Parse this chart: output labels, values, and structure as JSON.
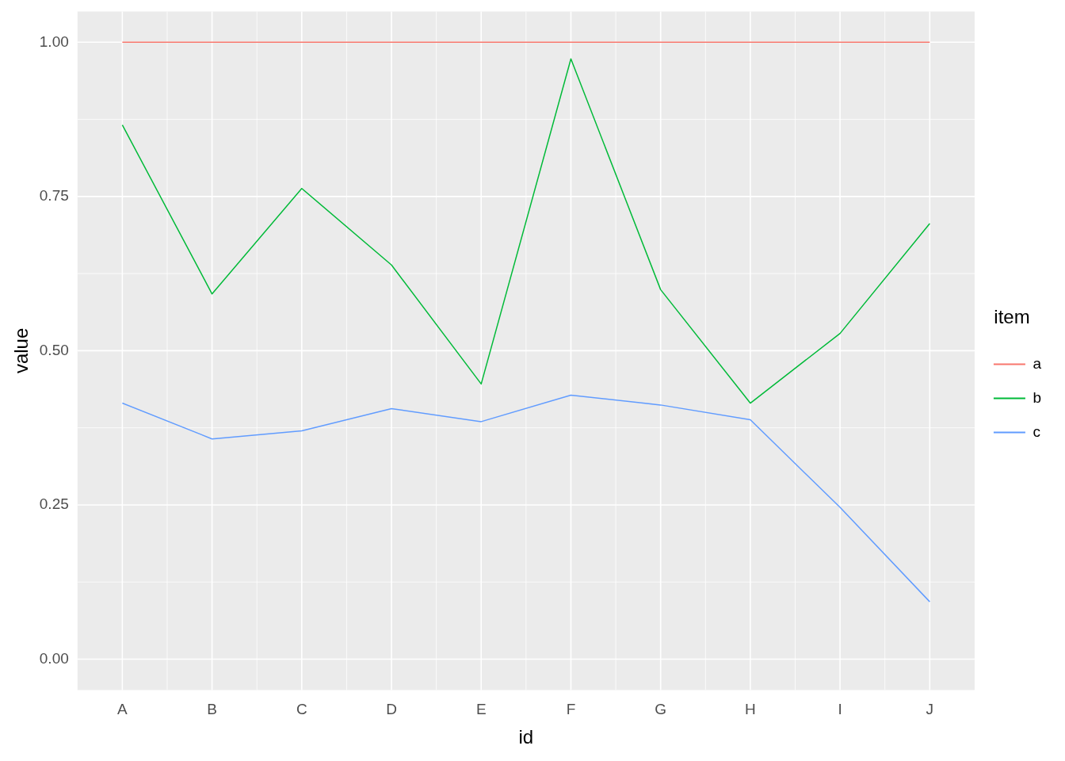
{
  "chart_data": {
    "type": "line",
    "xlabel": "id",
    "ylabel": "value",
    "legend_title": "item",
    "categories": [
      "A",
      "B",
      "C",
      "D",
      "E",
      "F",
      "G",
      "H",
      "I",
      "J"
    ],
    "series": [
      {
        "name": "a",
        "color": "#f8766d",
        "values": [
          1,
          1,
          1,
          1,
          1,
          1,
          1,
          1,
          1,
          1
        ]
      },
      {
        "name": "b",
        "color": "#00ba38",
        "values": [
          0.866,
          0.592,
          0.763,
          0.639,
          0.446,
          0.973,
          0.599,
          0.415,
          0.528,
          0.706
        ]
      },
      {
        "name": "c",
        "color": "#619cff",
        "values": [
          0.415,
          0.357,
          0.37,
          0.406,
          0.385,
          0.428,
          0.412,
          0.388,
          0.246,
          0.093
        ]
      }
    ],
    "ylim": [
      -0.05,
      1.05
    ],
    "yticks": [
      {
        "value": 0,
        "label": "0.00"
      },
      {
        "value": 0.25,
        "label": "0.25"
      },
      {
        "value": 0.5,
        "label": "0.50"
      },
      {
        "value": 0.75,
        "label": "0.75"
      },
      {
        "value": 1,
        "label": "1.00"
      }
    ],
    "grid": true,
    "legend": "right",
    "marker": "none",
    "line_style": "solid"
  }
}
